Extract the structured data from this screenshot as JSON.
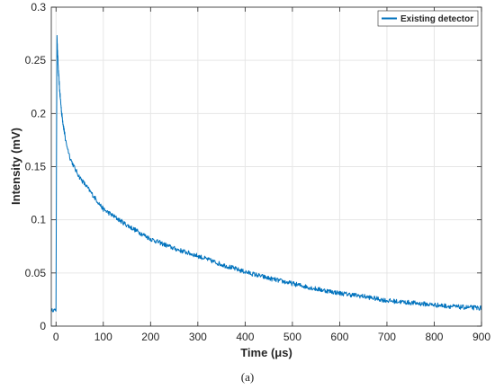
{
  "chart_data": {
    "type": "line",
    "xlabel": "Time (μs)",
    "ylabel": "Intensity (mV)",
    "xlim": [
      -10,
      900
    ],
    "ylim": [
      0,
      0.3
    ],
    "xticks": [
      0,
      100,
      200,
      300,
      400,
      500,
      600,
      700,
      800,
      900
    ],
    "yticks": [
      0,
      0.05,
      0.1,
      0.15,
      0.2,
      0.25,
      0.3
    ],
    "xtick_labels": [
      "0",
      "100",
      "200",
      "300",
      "400",
      "500",
      "600",
      "700",
      "800",
      "900"
    ],
    "ytick_labels": [
      "0",
      "0.05",
      "0.1",
      "0.15",
      "0.2",
      "0.25",
      "0.3"
    ],
    "grid": true,
    "legend_position": "top-right",
    "series": [
      {
        "name": "Existing detector",
        "color": "#0072BD",
        "x": [
          -10,
          -5,
          0,
          1,
          2,
          3,
          5,
          8,
          12,
          20,
          30,
          40,
          50,
          60,
          80,
          100,
          150,
          200,
          250,
          300,
          350,
          400,
          450,
          500,
          550,
          600,
          650,
          700,
          750,
          800,
          850,
          900
        ],
        "y": [
          0.015,
          0.015,
          0.015,
          0.15,
          0.277,
          0.26,
          0.24,
          0.22,
          0.2,
          0.175,
          0.158,
          0.148,
          0.14,
          0.134,
          0.122,
          0.11,
          0.095,
          0.082,
          0.073,
          0.066,
          0.058,
          0.051,
          0.045,
          0.04,
          0.035,
          0.031,
          0.028,
          0.024,
          0.022,
          0.02,
          0.018,
          0.017
        ]
      }
    ],
    "caption": "(a)"
  }
}
